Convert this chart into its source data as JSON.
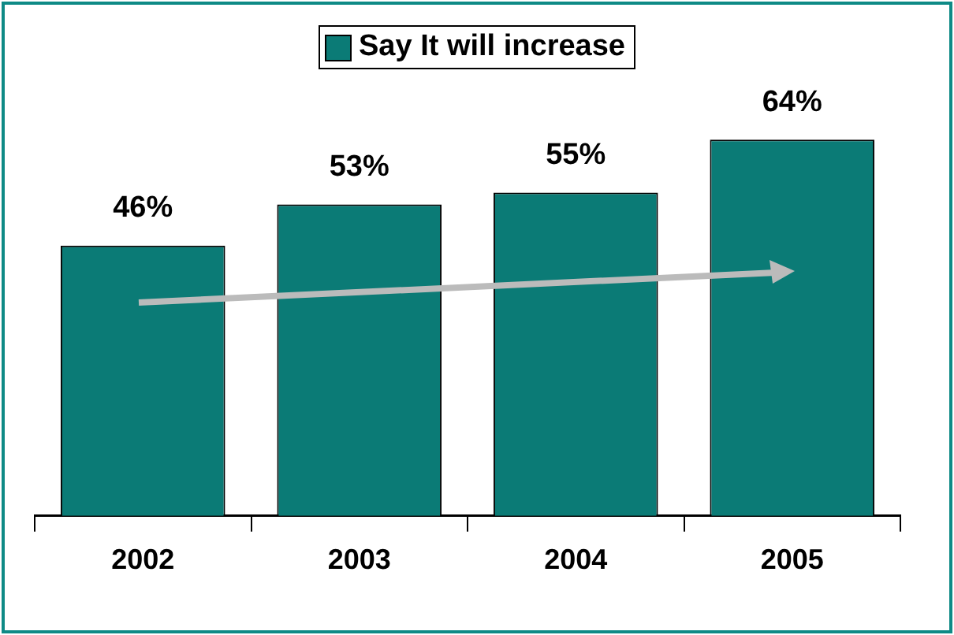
{
  "chart_data": {
    "type": "bar",
    "categories": [
      "2002",
      "2003",
      "2004",
      "2005"
    ],
    "series": [
      {
        "name": "Say It will increase",
        "color": "#0b7b76",
        "values": [
          46,
          53,
          55,
          64
        ],
        "value_labels": [
          "46%",
          "53%",
          "55%",
          "64%"
        ]
      }
    ],
    "legend": "top",
    "grid": false
  }
}
